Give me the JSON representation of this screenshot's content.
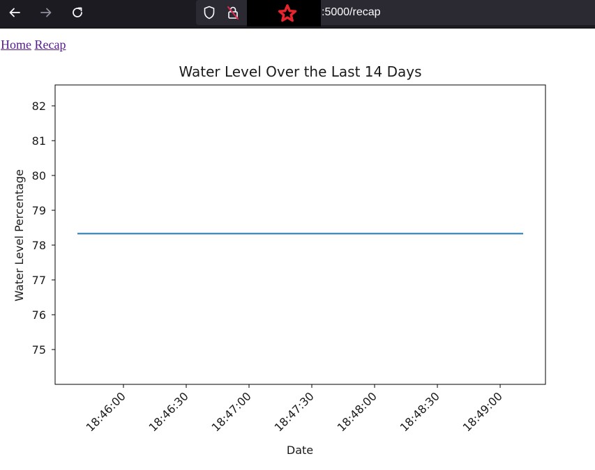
{
  "browser": {
    "back_icon": "arrow-left-icon",
    "forward_icon": "arrow-right-icon",
    "reload_icon": "reload-icon",
    "shield_icon": "shield-icon",
    "lock_icon": "insecure-lock-icon",
    "url_suffix": ":5000/recap"
  },
  "nav": {
    "home_label": "Home",
    "recap_label": "Recap"
  },
  "chart_data": {
    "type": "line",
    "title": "Water Level Over the Last 14 Days",
    "xlabel": "Date",
    "ylabel": "Water Level Percentage",
    "x_ticks": [
      "18:46:00",
      "18:46:30",
      "18:47:00",
      "18:47:30",
      "18:48:00",
      "18:48:30",
      "18:49:00"
    ],
    "y_ticks": [
      75,
      76,
      77,
      78,
      79,
      80,
      81,
      82
    ],
    "ylim": [
      74,
      82.6
    ],
    "grid": false,
    "series": [
      {
        "x": [
          "18:45:38",
          "18:49:11"
        ],
        "y": [
          78.33,
          78.33
        ],
        "color": "#1f77b4"
      }
    ]
  }
}
